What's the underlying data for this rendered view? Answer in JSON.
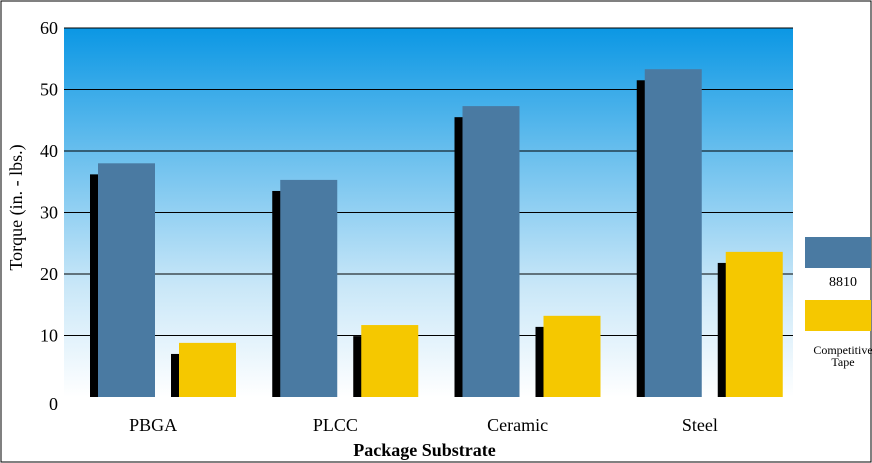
{
  "chart_data": {
    "type": "bar",
    "title": "",
    "xlabel": "Package Substrate",
    "ylabel": "Torque (in. - lbs.)",
    "ylim": [
      0,
      60
    ],
    "yticks": [
      0,
      10,
      20,
      30,
      40,
      50,
      60
    ],
    "grid": true,
    "legend_position": "right",
    "categories": [
      "PBGA",
      "PLCC",
      "Ceramic",
      "Steel"
    ],
    "series": [
      {
        "name": "8810",
        "color": "#4a7aa2",
        "values": [
          38,
          35.3,
          47.3,
          53.3
        ]
      },
      {
        "name": "Competitive Tape",
        "legend_lines": [
          "Competitive",
          "Tape"
        ],
        "color": "#f5c800",
        "values": [
          8.8,
          11.7,
          13.2,
          23.6
        ]
      }
    ]
  }
}
